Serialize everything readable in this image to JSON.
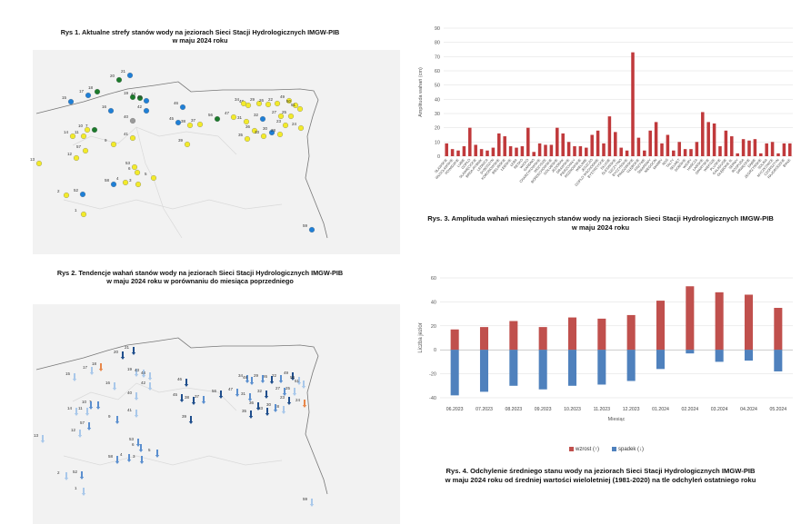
{
  "fig1": {
    "caption_line1": "Rys 1. Aktualne strefy stanów wody na jeziorach Sieci Stacji Hydrologicznych IMGW-PIB",
    "caption_line2": "w maju 2024 roku",
    "colors": {
      "yellow": "#f2ea2a",
      "blue": "#1f7fd6",
      "green": "#1c7a2c",
      "gray": "#9a9a9a"
    },
    "stations": [
      {
        "n": "20",
        "c": "green"
      },
      {
        "n": "21",
        "c": "blue"
      },
      {
        "n": "15",
        "c": "blue"
      },
      {
        "n": "17",
        "c": "blue"
      },
      {
        "n": "18",
        "c": "green"
      },
      {
        "n": "19",
        "c": "green"
      },
      {
        "n": "43",
        "c": "green"
      },
      {
        "n": "44",
        "c": "blue"
      },
      {
        "n": "16",
        "c": "blue"
      },
      {
        "n": "42",
        "c": "blue"
      },
      {
        "n": "40",
        "c": "gray"
      },
      {
        "n": "10",
        "c": "yellow"
      },
      {
        "n": "7",
        "c": "green"
      },
      {
        "n": "14",
        "c": "yellow"
      },
      {
        "n": "11",
        "c": "yellow"
      },
      {
        "n": "57",
        "c": "yellow"
      },
      {
        "n": "12",
        "c": "yellow"
      },
      {
        "n": "9",
        "c": "yellow"
      },
      {
        "n": "41",
        "c": "yellow"
      },
      {
        "n": "13",
        "c": "yellow"
      },
      {
        "n": "53",
        "c": "yellow"
      },
      {
        "n": "6",
        "c": "yellow"
      },
      {
        "n": "5",
        "c": "yellow"
      },
      {
        "n": "58",
        "c": "blue"
      },
      {
        "n": "4",
        "c": "yellow"
      },
      {
        "n": "3",
        "c": "yellow"
      },
      {
        "n": "2",
        "c": "yellow"
      },
      {
        "n": "52",
        "c": "blue"
      },
      {
        "n": "1",
        "c": "yellow"
      },
      {
        "n": "46",
        "c": "blue"
      },
      {
        "n": "45",
        "c": "blue"
      },
      {
        "n": "38",
        "c": "yellow"
      },
      {
        "n": "37",
        "c": "yellow"
      },
      {
        "n": "39",
        "c": "yellow"
      },
      {
        "n": "56",
        "c": "green"
      },
      {
        "n": "47",
        "c": "yellow"
      },
      {
        "n": "48",
        "c": "yellow"
      },
      {
        "n": "34",
        "c": "yellow"
      },
      {
        "n": "29",
        "c": "yellow"
      },
      {
        "n": "26",
        "c": "yellow"
      },
      {
        "n": "22",
        "c": "yellow"
      },
      {
        "n": "49",
        "c": "yellow"
      },
      {
        "n": "50",
        "c": "yellow"
      },
      {
        "n": "51",
        "c": "yellow"
      },
      {
        "n": "31",
        "c": "yellow"
      },
      {
        "n": "32",
        "c": "blue"
      },
      {
        "n": "27",
        "c": "yellow"
      },
      {
        "n": "36",
        "c": "yellow"
      },
      {
        "n": "30",
        "c": "blue"
      },
      {
        "n": "33",
        "c": "yellow"
      },
      {
        "n": "28",
        "c": "yellow"
      },
      {
        "n": "25",
        "c": "yellow"
      },
      {
        "n": "23",
        "c": "yellow"
      },
      {
        "n": "24",
        "c": "yellow"
      },
      {
        "n": "35",
        "c": "yellow"
      },
      {
        "n": "59",
        "c": "blue"
      }
    ]
  },
  "fig2": {
    "caption_line1": "Rys 2. Tendencje wahań stanów wody na jeziorach Sieci Stacji Hydrologicznych IMGW-PIB",
    "caption_line2": "w maju 2024 roku w porównaniu do miesiąca poprzedniego",
    "colors": {
      "dark": "#1f4e8c",
      "mid": "#5b8fcf",
      "light": "#a9c8ea",
      "orange": "#e8874a"
    }
  },
  "chart_data": [
    {
      "type": "bar",
      "title": "",
      "ylabel": "Amplituda wahań (cm)",
      "ylim": [
        0,
        90
      ],
      "yticks": [
        0,
        10,
        20,
        30,
        40,
        50,
        60,
        70,
        80,
        90
      ],
      "grid": true,
      "color": "#c0393b",
      "caption_line1": "Rys. 3. Amplituda wahań miesięcznych stanów wody na jeziorach Sieci Stacji Hydrologicznych IMGW-PIB",
      "caption_line2": "w maju 2024 roku",
      "categories": [
        "SŁAWSKIE",
        "WŁOCŁAWSKIE",
        "POWIDZKIE",
        "LUBIE",
        "GOPŁO",
        "SŁAWIĘCICKIE",
        "BRDA-RYBNIK",
        "LEDNICA",
        "DYBOSZYN",
        "KORONOWSKIE",
        "BIELIŃSKIE",
        "ŁEBSKIE",
        "ŁEBA",
        "RESKO",
        "WICKO",
        "GARDNO",
        "CHARZYKOWSKIE",
        "WDZYDZE",
        "BORZECHOWSKIE",
        "GOLUBSKIE",
        "JEZIORAK",
        "DRAWSKIE",
        "PIERZCHAŁY",
        "ROŻNOWSKIE",
        "WIELIMIE",
        "JESZCZO",
        "GOPLO WSCHODNIE",
        "BYSTRZYCKIE",
        "DŁUGIE",
        "ŚLESIŃSKIE",
        "SZCZYTNO",
        "BYCZYŃSKIE",
        "PRĄDZIŃSKIE",
        "GŁĘBOKIE",
        "KRZYWE",
        "ŚNIARDWY",
        "NIEGOCIN",
        "MAMRY",
        "ROŚ",
        "TAŁTY",
        "SELMĘT",
        "DOBSKIE",
        "WIGRY",
        "HAŃCZA",
        "ŁAŃSKIE",
        "OPARTSKIE",
        "WIEKSZE",
        "PLUSKIE",
        "GAŁADUSIE",
        "GŁĘBOKIE N.",
        "SERWY",
        "ROSPUDA",
        "DRWĘCKIE",
        "DĄBIE",
        "ZEGRZYŃSKIE",
        "SOLINA",
        "MYCZKOWCE",
        "CZORSZTYN",
        "RAJGRODZKIE",
        "BIAŁE"
      ],
      "values": [
        9,
        5,
        4,
        7,
        20,
        8,
        5,
        4,
        6,
        16,
        14,
        7,
        6,
        7,
        20,
        3,
        9,
        8,
        8,
        20,
        16,
        10,
        7,
        7,
        6,
        15,
        18,
        9,
        28,
        17,
        6,
        4,
        73,
        13,
        4,
        18,
        24,
        9,
        15,
        4,
        10,
        5,
        5,
        10,
        31,
        24,
        23,
        7,
        18,
        14,
        2,
        12,
        11,
        12,
        2,
        9,
        10,
        2,
        9,
        9
      ]
    },
    {
      "type": "bar",
      "title": "",
      "xlabel": "Miesiąc",
      "ylabel": "Liczba jezior",
      "ylim": [
        -40,
        60
      ],
      "yticks": [
        -40,
        -20,
        0,
        20,
        40,
        60
      ],
      "grid": true,
      "categories": [
        "06.2023",
        "07.2023",
        "08.2023",
        "09.2023",
        "10.2023",
        "11.2023",
        "12.2023",
        "01.2024",
        "02.2024",
        "03.2024",
        "04.2024",
        "05.2024"
      ],
      "series": [
        {
          "name": "wzrost (↑)",
          "color": "#c0504d",
          "values": [
            17,
            19,
            24,
            19,
            27,
            26,
            29,
            41,
            53,
            48,
            46,
            35
          ]
        },
        {
          "name": "spadek (↓)",
          "color": "#4f81bd",
          "values": [
            -38,
            -35,
            -30,
            -33,
            -30,
            -29,
            -26,
            -16,
            -3,
            -10,
            -9,
            -18
          ]
        }
      ],
      "legend": "bottom",
      "caption_line1": "Rys. 4. Odchylenie średniego stanu wody na jeziorach Sieci Stacji Hydrologicznych IMGW-PIB",
      "caption_line2": "w maju 2024 roku od średniej wartości wieloletniej (1981-2020) na tle odchyleń ostatniego roku"
    }
  ]
}
